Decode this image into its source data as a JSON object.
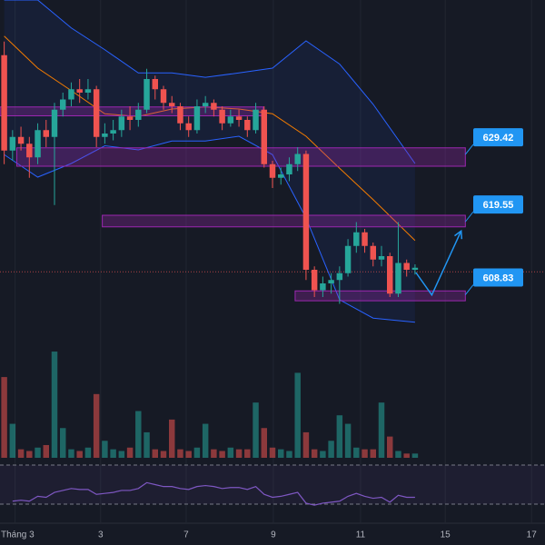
{
  "chart_data": {
    "type": "candlestick",
    "up_color": "#26a69a",
    "down_color": "#ef5350",
    "xlim": [
      0,
      65
    ],
    "ylim": [
      602.5,
      652.5
    ],
    "xticks": [
      {
        "value": 1.8,
        "label": "Tháng 3"
      },
      {
        "value": 12.0,
        "label": "3"
      },
      {
        "value": 22.2,
        "label": "7"
      },
      {
        "value": 32.6,
        "label": "9"
      },
      {
        "value": 43.0,
        "label": "11"
      },
      {
        "value": 53.1,
        "label": "15"
      },
      {
        "value": 63.4,
        "label": "17"
      }
    ],
    "open": [
      644.0,
      630.0,
      632.0,
      631.0,
      629.0,
      633.0,
      632.0,
      636.0,
      637.5,
      639.0,
      638.5,
      639.0,
      632.0,
      632.5,
      633.0,
      635.0,
      634.5,
      636.0,
      640.5,
      639.0,
      637.0,
      636.5,
      634.0,
      633.0,
      636.5,
      637.0,
      636.0,
      634.0,
      635.0,
      634.5,
      633.0,
      636.0,
      628.0,
      626.0,
      626.5,
      628.0,
      629.5,
      612.5,
      609.5,
      610.5,
      611.0,
      612.0,
      616.0,
      618.0,
      616.0,
      614.0,
      614.5,
      609.0,
      613.5,
      612.5
    ],
    "high": [
      646.0,
      633.0,
      633.5,
      632.0,
      634.0,
      634.5,
      637.0,
      638.5,
      640.0,
      640.5,
      640.5,
      639.5,
      634.0,
      634.5,
      636.0,
      636.5,
      637.0,
      642.0,
      641.0,
      639.5,
      638.0,
      637.0,
      635.0,
      637.5,
      638.0,
      637.5,
      636.5,
      636.0,
      636.0,
      635.0,
      637.0,
      636.5,
      628.5,
      627.5,
      629.0,
      630.5,
      630.0,
      613.0,
      611.5,
      612.0,
      613.0,
      617.0,
      619.5,
      618.5,
      616.5,
      616.0,
      615.0,
      619.5,
      614.0,
      613.3
    ],
    "low": [
      628.0,
      628.5,
      630.0,
      626.0,
      628.0,
      630.5,
      622.0,
      635.0,
      636.5,
      637.0,
      637.5,
      630.5,
      631.0,
      631.5,
      632.0,
      633.0,
      633.5,
      635.5,
      637.5,
      636.0,
      635.5,
      633.0,
      632.0,
      632.5,
      635.5,
      635.0,
      633.0,
      633.5,
      633.5,
      632.0,
      632.5,
      627.5,
      624.5,
      625.0,
      625.5,
      627.0,
      611.0,
      608.5,
      608.5,
      609.0,
      607.5,
      611.5,
      615.0,
      615.0,
      613.0,
      613.0,
      608.5,
      608.5,
      611.5,
      611.8
    ],
    "close": [
      630.0,
      632.0,
      631.0,
      629.0,
      633.0,
      632.0,
      636.0,
      637.5,
      639.0,
      638.5,
      639.0,
      632.0,
      632.5,
      633.0,
      635.0,
      634.5,
      636.0,
      640.5,
      639.0,
      637.0,
      636.5,
      634.0,
      633.0,
      636.5,
      637.0,
      636.0,
      634.0,
      635.0,
      634.5,
      633.0,
      636.0,
      628.0,
      626.0,
      626.5,
      628.0,
      629.5,
      612.5,
      609.5,
      610.5,
      611.0,
      612.0,
      616.0,
      618.0,
      616.0,
      614.0,
      614.5,
      609.0,
      613.5,
      612.5,
      612.8
    ],
    "volume": [
      95,
      40,
      10,
      8,
      12,
      15,
      125,
      35,
      10,
      8,
      12,
      75,
      20,
      10,
      8,
      12,
      55,
      30,
      10,
      8,
      45,
      10,
      8,
      12,
      40,
      10,
      8,
      12,
      10,
      10,
      65,
      35,
      12,
      10,
      8,
      100,
      30,
      10,
      8,
      20,
      50,
      40,
      12,
      10,
      10,
      65,
      25,
      8,
      5,
      5
    ],
    "volume_lim": [
      0,
      140
    ],
    "bands": {
      "x": [
        0.5,
        4.5,
        8.5,
        12.5,
        16.5,
        20.5,
        24.5,
        28.5,
        32.5,
        36.5,
        40.5,
        44.5,
        49.5
      ],
      "upper": [
        652.1,
        652.1,
        648.0,
        644.8,
        641.4,
        641.4,
        640.75,
        641.4,
        642.1,
        646.1,
        642.7,
        636.8,
        628.1
      ],
      "lower": [
        629.4,
        626.1,
        628.1,
        630.7,
        630.1,
        631.4,
        631.4,
        632.1,
        629.4,
        620.1,
        608.1,
        605.4,
        604.8
      ],
      "ma": [
        646.8,
        642.1,
        638.8,
        635.4,
        635.0,
        636.1,
        636.4,
        636.1,
        635.4,
        632.1,
        627.4,
        622.8,
        616.8
      ],
      "band_color": "#2962ff",
      "ma_color": "#f57c00"
    },
    "zones": [
      {
        "top": 636.4,
        "bottom": 635.1,
        "x0": 0,
        "x1": 31.4
      },
      {
        "top": 630.4,
        "bottom": 627.7,
        "x0": 2.0,
        "x1": 55.5
      },
      {
        "top": 620.5,
        "bottom": 618.8,
        "x0": 12.2,
        "x1": 55.5
      },
      {
        "top": 609.4,
        "bottom": 607.95,
        "x0": 35.2,
        "x1": 55.5
      }
    ],
    "zone_color": "#9c27b0",
    "price_labels": [
      629.42,
      619.55,
      608.83
    ],
    "label_color": "#2196f3",
    "price_line": 612.2,
    "projection": {
      "x": [
        49.6,
        51.5,
        55.0
      ],
      "y": [
        612.1,
        608.8,
        618.2
      ]
    },
    "rsi": [
      null,
      33,
      34,
      33,
      38,
      37,
      42,
      44,
      46,
      45,
      45,
      40,
      41,
      42,
      44,
      44,
      46,
      52,
      50,
      48,
      48,
      46,
      45,
      48,
      49,
      48,
      46,
      47,
      47,
      45,
      48,
      40,
      37,
      38,
      40,
      42,
      31,
      29,
      31,
      32,
      33,
      38,
      41,
      38,
      36,
      37,
      32,
      39,
      37,
      37
    ],
    "rsi_levels": [
      70,
      30
    ],
    "rsi_color": "#7e57c2"
  }
}
